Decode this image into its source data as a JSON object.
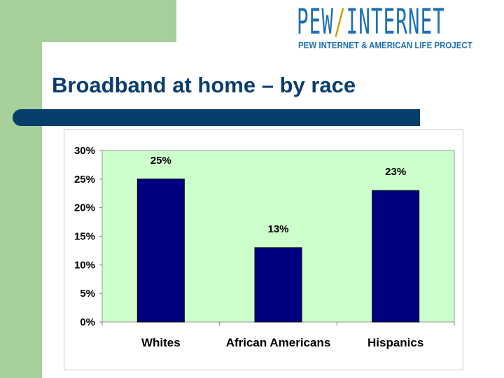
{
  "colors": {
    "accent_green": "#a6cf99",
    "title_color": "#0b3d6e",
    "bar_color": "#000080",
    "plot_bg": "#ccffcc",
    "logo_blue": "#1f6fb5",
    "logo_slash": "#c9a000"
  },
  "logo": {
    "main_left": "PEW",
    "slash": "/",
    "main_right": "INTERNET",
    "sub": "PEW INTERNET & AMERICAN LIFE PROJECT"
  },
  "slide": {
    "title": "Broadband at home – by race"
  },
  "chart_data": {
    "type": "bar",
    "categories": [
      "Whites",
      "African Americans",
      "Hispanics"
    ],
    "values": [
      25,
      13,
      23
    ],
    "data_labels": [
      "25%",
      "13%",
      "23%"
    ],
    "ylim": [
      0,
      30
    ],
    "yticks": [
      0,
      5,
      10,
      15,
      20,
      25,
      30
    ],
    "ytick_labels": [
      "0%",
      "5%",
      "10%",
      "15%",
      "20%",
      "25%",
      "30%"
    ],
    "grid": false,
    "legend": "none",
    "title": "",
    "xlabel": "",
    "ylabel": ""
  }
}
